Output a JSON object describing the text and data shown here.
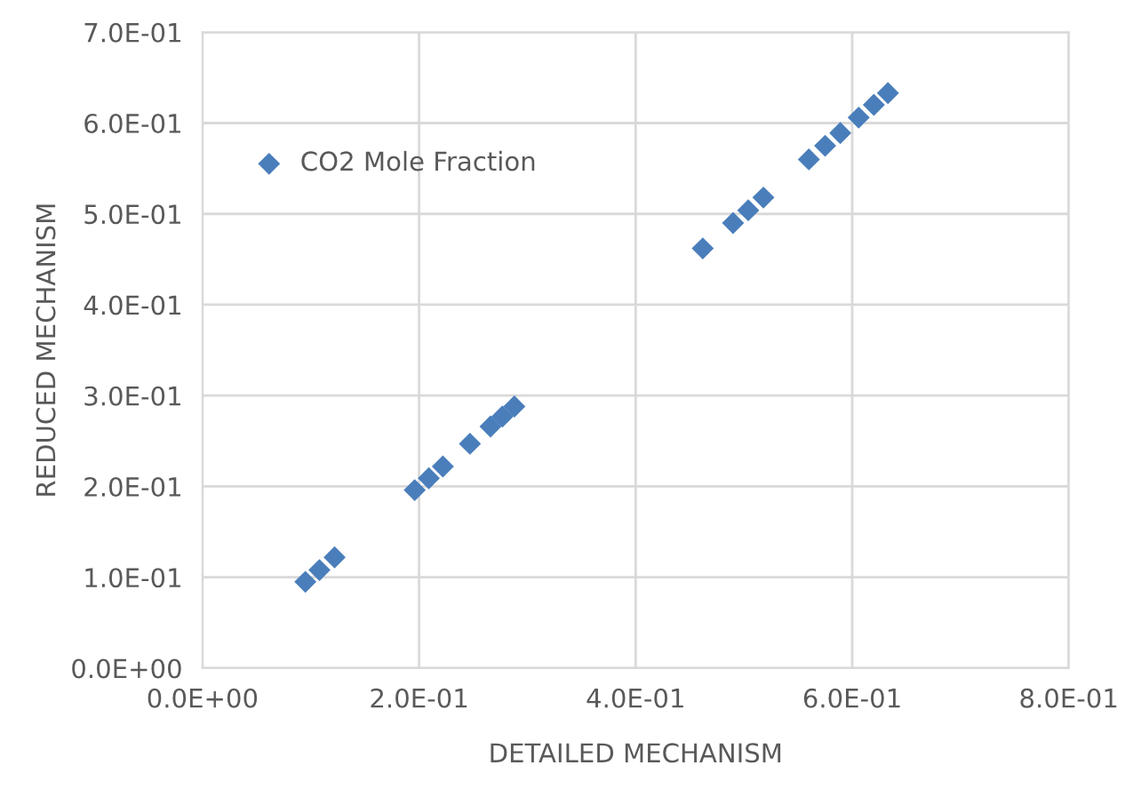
{
  "chart_data": {
    "type": "scatter",
    "xlabel": "DETAILED MECHANISM",
    "ylabel": "REDUCED MECHANISM",
    "series": [
      {
        "name": "CO2 Mole Fraction",
        "color": "#4a7ebb",
        "x": [
          0.095,
          0.108,
          0.122,
          0.196,
          0.209,
          0.222,
          0.247,
          0.266,
          0.277,
          0.288,
          0.462,
          0.49,
          0.504,
          0.518,
          0.56,
          0.575,
          0.589,
          0.606,
          0.62,
          0.633
        ],
        "values": [
          0.095,
          0.108,
          0.122,
          0.196,
          0.209,
          0.222,
          0.247,
          0.266,
          0.277,
          0.288,
          0.462,
          0.49,
          0.504,
          0.518,
          0.56,
          0.575,
          0.589,
          0.606,
          0.62,
          0.633
        ]
      }
    ],
    "xlim": [
      0,
      0.8
    ],
    "ylim": [
      0,
      0.7
    ],
    "xticks": [
      {
        "value": 0,
        "label": "0.0E+00"
      },
      {
        "value": 0.2,
        "label": "2.0E-01"
      },
      {
        "value": 0.4,
        "label": "4.0E-01"
      },
      {
        "value": 0.6,
        "label": "6.0E-01"
      },
      {
        "value": 0.8,
        "label": "8.0E-01"
      }
    ],
    "yticks": [
      {
        "value": 0,
        "label": "0.0E+00"
      },
      {
        "value": 0.1,
        "label": "1.0E-01"
      },
      {
        "value": 0.2,
        "label": "2.0E-01"
      },
      {
        "value": 0.3,
        "label": "3.0E-01"
      },
      {
        "value": 0.4,
        "label": "4.0E-01"
      },
      {
        "value": 0.5,
        "label": "5.0E-01"
      },
      {
        "value": 0.6,
        "label": "6.0E-01"
      },
      {
        "value": 0.7,
        "label": "7.0E-01"
      }
    ],
    "grid": true,
    "legend": "top left",
    "marker": "diamond"
  }
}
